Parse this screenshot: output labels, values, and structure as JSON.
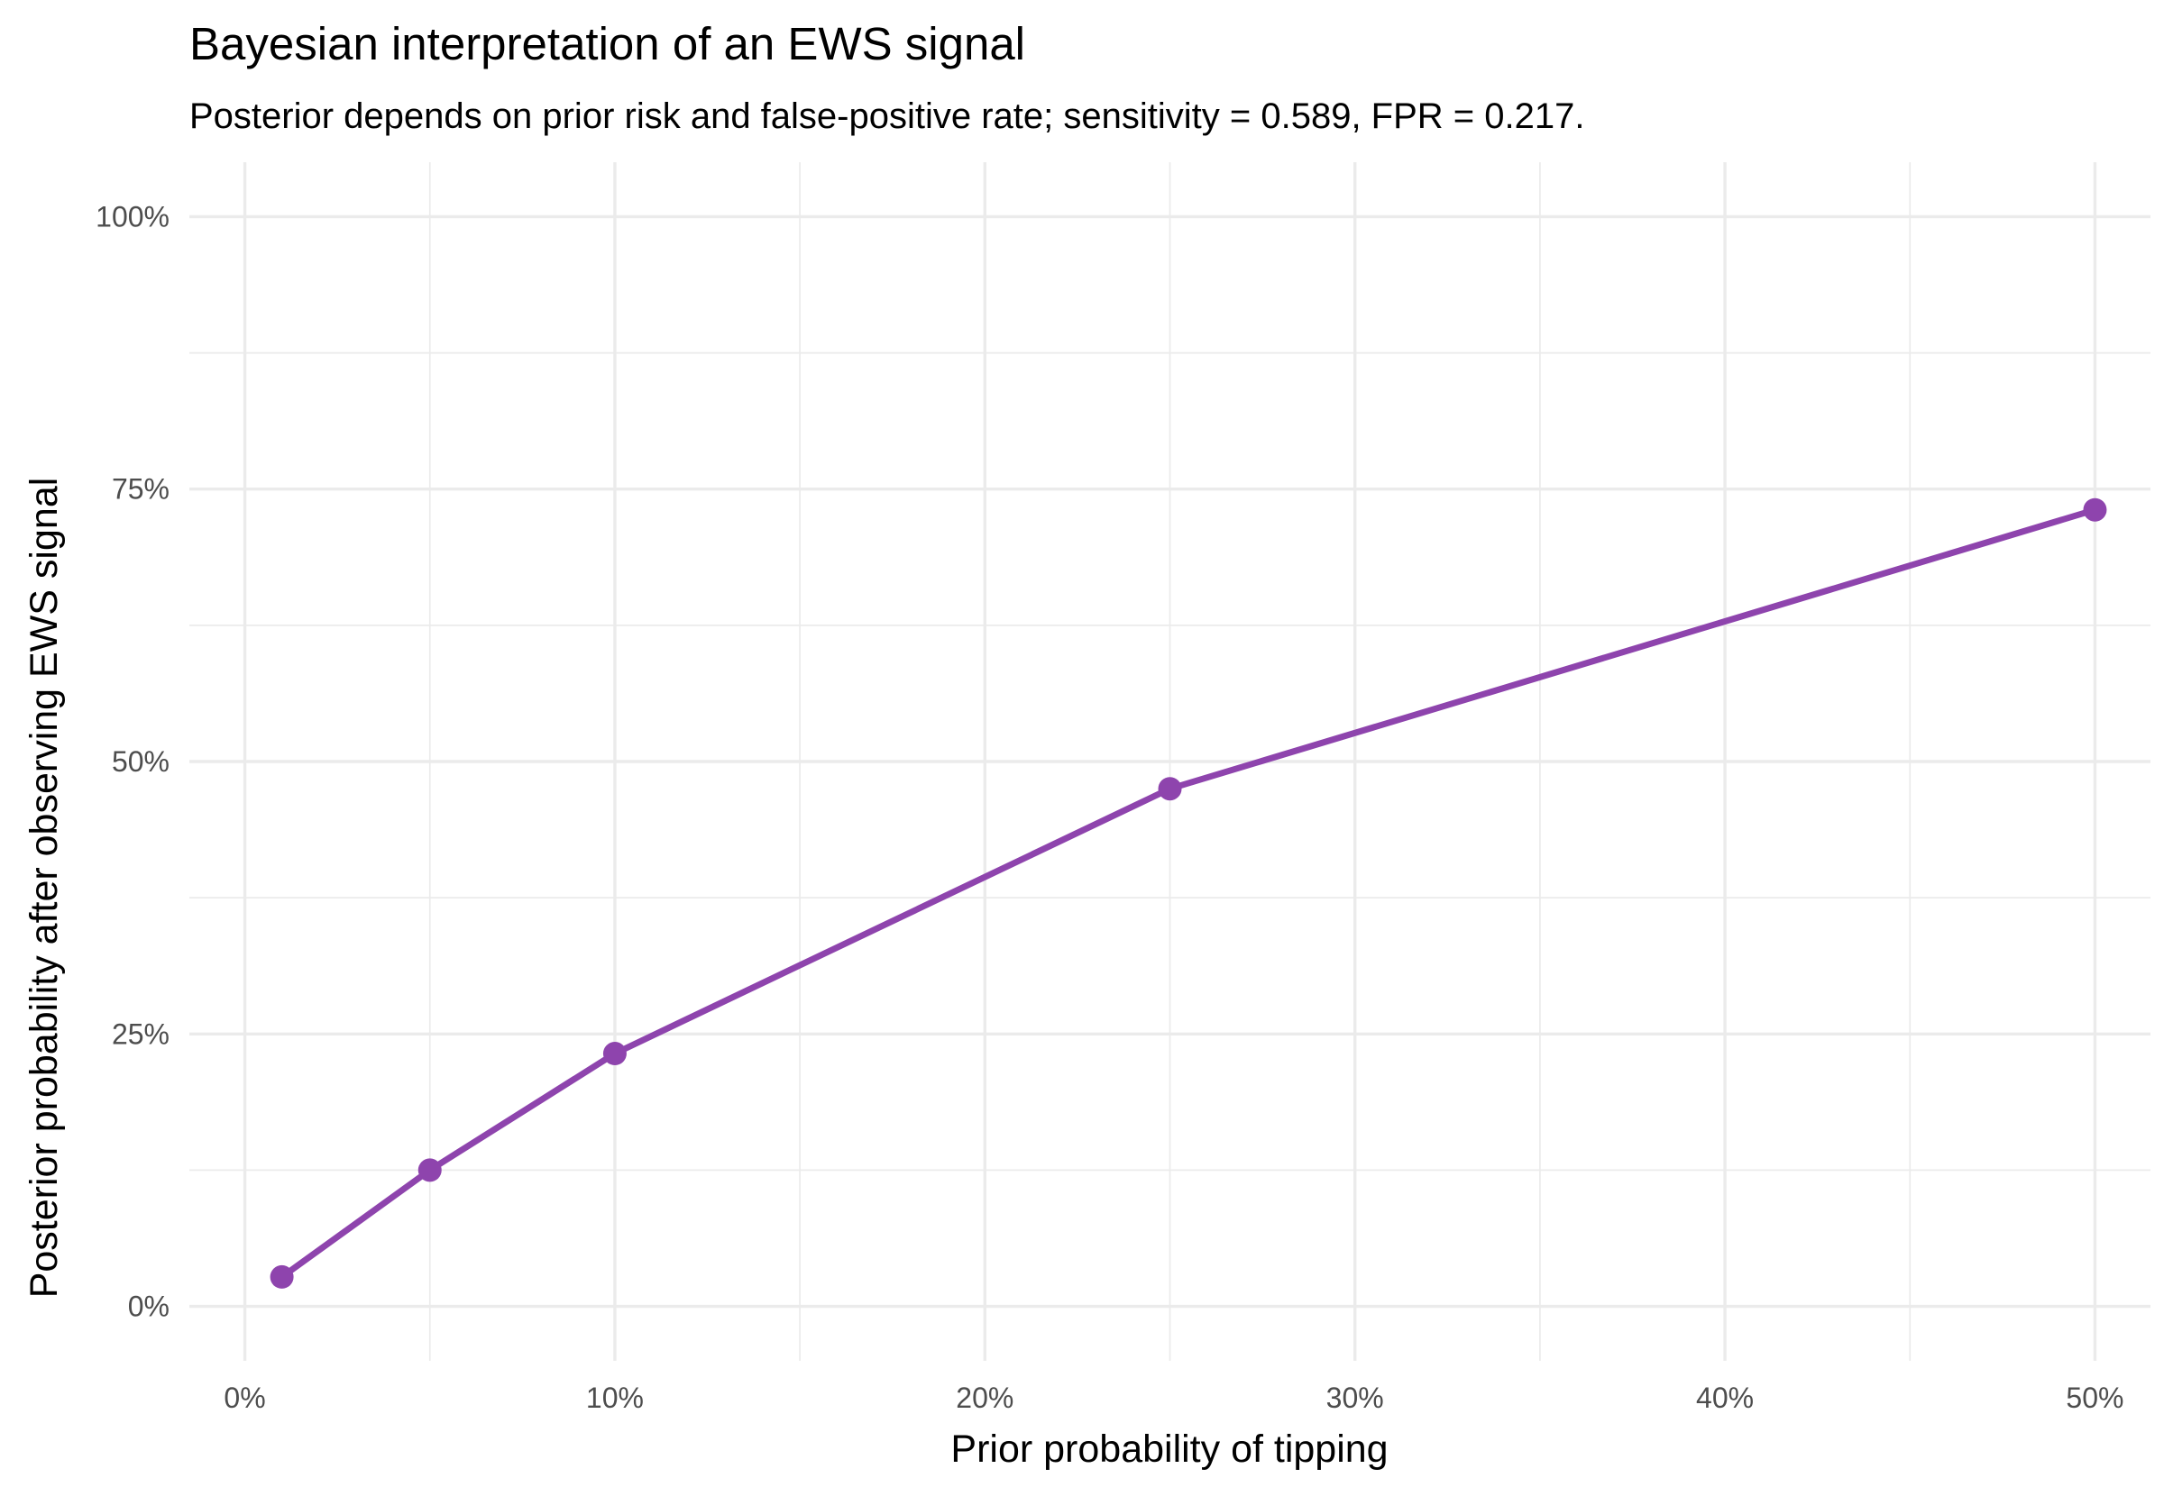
{
  "chart_data": {
    "type": "line",
    "title": "Bayesian interpretation of an EWS signal",
    "subtitle": "Posterior depends on prior risk and false-positive rate; sensitivity = 0.589, FPR = 0.217.",
    "xlabel": "Prior probability of tipping",
    "ylabel": "Posterior probability after observing EWS signal",
    "xlim": [
      -0.015,
      0.515
    ],
    "ylim": [
      -0.05,
      1.05
    ],
    "x_ticks": [
      0,
      0.1,
      0.2,
      0.3,
      0.4,
      0.5
    ],
    "x_tick_labels": [
      "0%",
      "10%",
      "20%",
      "30%",
      "40%",
      "50%"
    ],
    "y_ticks": [
      0,
      0.25,
      0.5,
      0.75,
      1.0
    ],
    "y_tick_labels": [
      "0%",
      "25%",
      "50%",
      "75%",
      "100%"
    ],
    "grid": true,
    "legend": "none",
    "series": [
      {
        "color": "#8e44ad",
        "x": [
          0.01,
          0.05,
          0.1,
          0.25,
          0.5
        ],
        "y": [
          0.027,
          0.125,
          0.232,
          0.475,
          0.731
        ]
      }
    ]
  }
}
